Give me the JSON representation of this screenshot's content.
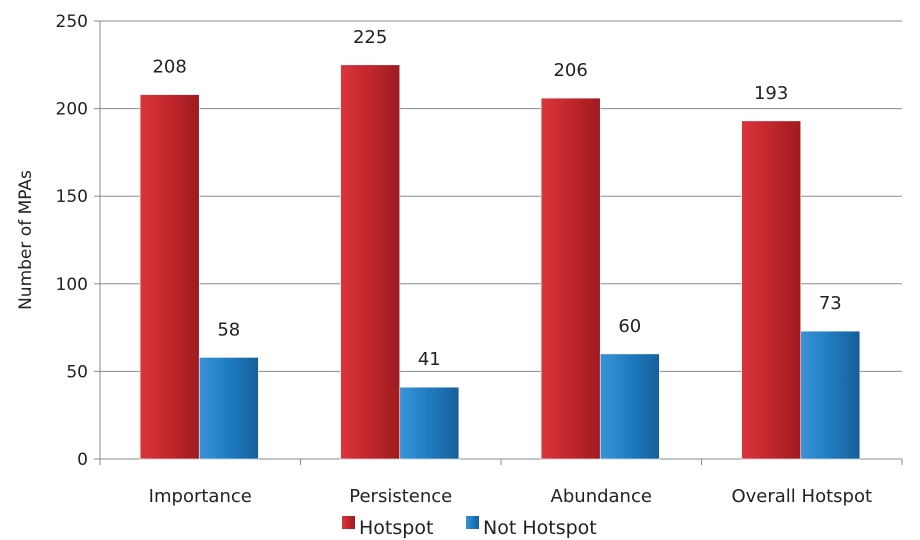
{
  "chart_data": {
    "type": "bar",
    "title": "",
    "xlabel": "",
    "ylabel": "Number of MPAs",
    "ylim": [
      0,
      250
    ],
    "yticks": [
      0,
      50,
      100,
      150,
      200,
      250
    ],
    "grid": true,
    "legend_position": "bottom",
    "categories": [
      "Importance",
      "Persistence",
      "Abundance",
      "Overall Hotspot"
    ],
    "series": [
      {
        "name": "Hotspot",
        "values": [
          208,
          225,
          206,
          193
        ],
        "color": "#c0262b"
      },
      {
        "name": "Not Hotspot",
        "values": [
          58,
          41,
          60,
          73
        ],
        "color": "#1f7bc1"
      }
    ]
  }
}
